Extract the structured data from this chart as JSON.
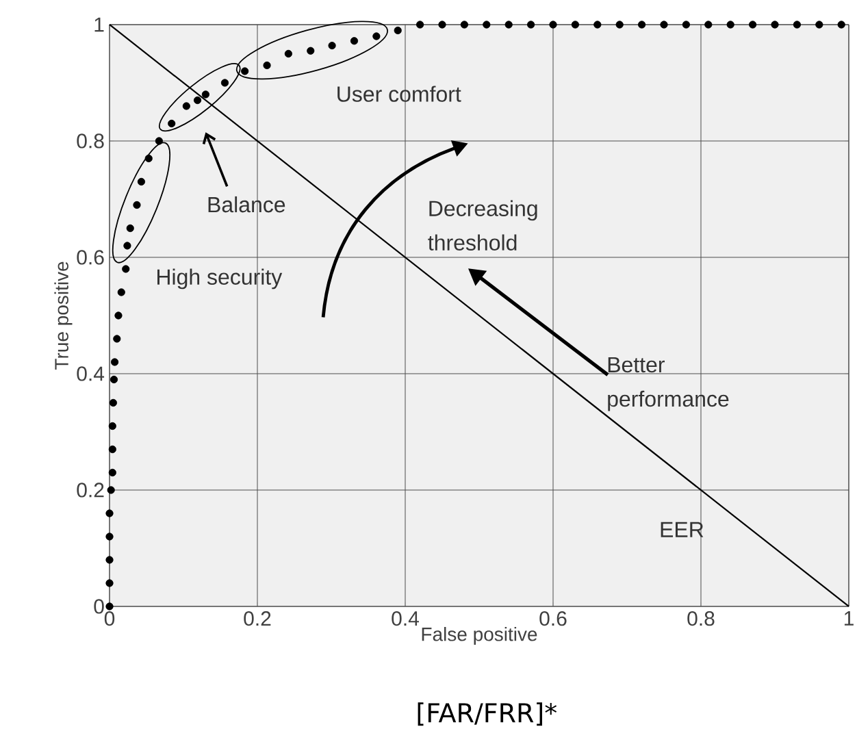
{
  "chart_data": {
    "type": "line",
    "xlabel": "False positive",
    "ylabel": "True positive",
    "xlim": [
      0,
      1
    ],
    "ylim": [
      0,
      1
    ],
    "xticks": [
      0,
      0.2,
      0.4,
      0.6,
      0.8,
      1
    ],
    "yticks": [
      0,
      0.2,
      0.4,
      0.6,
      0.8,
      1
    ],
    "grid": true,
    "series": [
      {
        "type": "scatter",
        "color": "#000000",
        "x": [
          0,
          0,
          0,
          0,
          0,
          0.002,
          0.004,
          0.004,
          0.004,
          0.005,
          0.006,
          0.007,
          0.01,
          0.012,
          0.016,
          0.022,
          0.024,
          0.028,
          0.037,
          0.043,
          0.053,
          0.067,
          0.084,
          0.104,
          0.119,
          0.13,
          0.156,
          0.183,
          0.213,
          0.242,
          0.272,
          0.301,
          0.331,
          0.361,
          0.39,
          0.42,
          0.45,
          0.48,
          0.51,
          0.54,
          0.57,
          0.6,
          0.63,
          0.66,
          0.69,
          0.72,
          0.75,
          0.78,
          0.81,
          0.84,
          0.87,
          0.9,
          0.93,
          0.96,
          0.99
        ],
        "values": [
          0,
          0.04,
          0.08,
          0.12,
          0.16,
          0.2,
          0.23,
          0.27,
          0.31,
          0.35,
          0.39,
          0.42,
          0.46,
          0.5,
          0.54,
          0.58,
          0.62,
          0.65,
          0.69,
          0.73,
          0.77,
          0.8,
          0.83,
          0.86,
          0.87,
          0.88,
          0.9,
          0.92,
          0.93,
          0.95,
          0.955,
          0.964,
          0.972,
          0.98,
          0.99,
          1,
          1,
          1,
          1,
          1,
          1,
          1,
          1,
          1,
          1,
          1,
          1,
          1,
          1,
          1,
          1,
          1,
          1,
          1,
          1
        ]
      },
      {
        "color": "#000000",
        "x": [
          0,
          1
        ],
        "values": [
          1,
          0
        ]
      }
    ],
    "annotations": [
      "User comfort",
      "Balance",
      "High security",
      "Decreasing threshold",
      "Better performance",
      "EER",
      "[FAR/FRR]*"
    ]
  }
}
